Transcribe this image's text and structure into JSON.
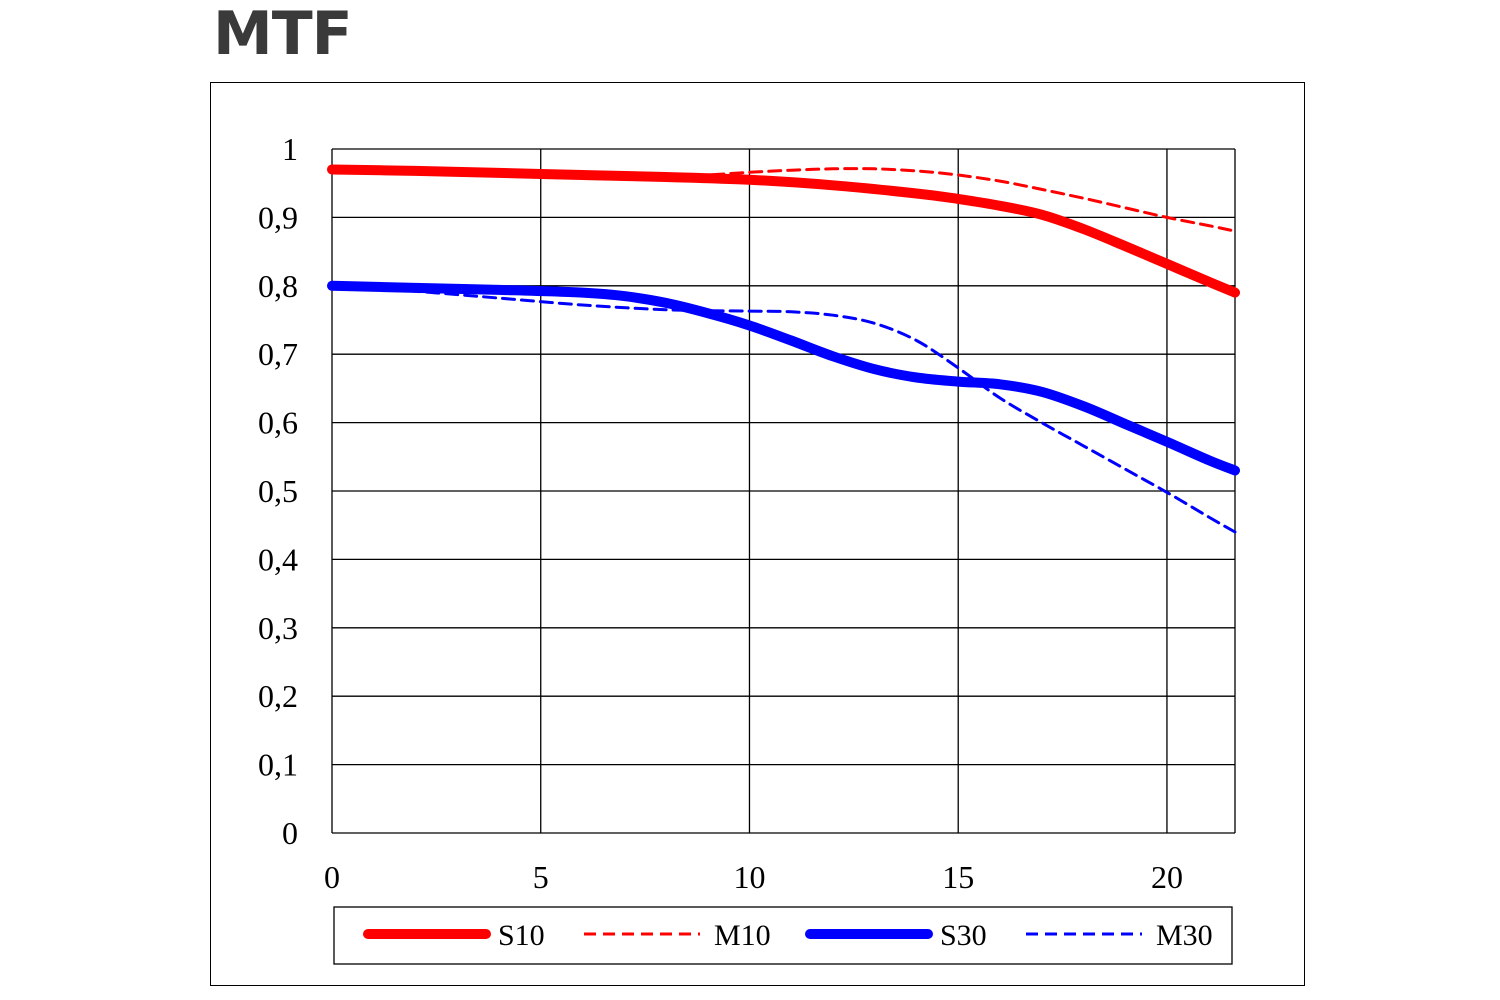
{
  "title": "MTF",
  "chart_data": {
    "type": "line",
    "title": "MTF",
    "xlabel": "",
    "ylabel": "",
    "xlim": [
      0,
      21.63
    ],
    "ylim": [
      0,
      1
    ],
    "x_ticks": [
      "0",
      "5",
      "10",
      "15",
      "20"
    ],
    "y_ticks": [
      "0",
      "0,1",
      "0,2",
      "0,3",
      "0,4",
      "0,5",
      "0,6",
      "0,7",
      "0,8",
      "0,9",
      "1"
    ],
    "grid": true,
    "legend_position": "bottom",
    "series": [
      {
        "name": "S10",
        "color": "#ff0000",
        "style": "solid",
        "x": [
          0,
          2,
          4,
          6,
          8,
          10,
          12,
          14,
          15,
          16,
          17,
          18,
          19,
          20,
          21,
          21.63
        ],
        "y": [
          0.97,
          0.968,
          0.965,
          0.962,
          0.959,
          0.955,
          0.947,
          0.935,
          0.927,
          0.917,
          0.904,
          0.883,
          0.858,
          0.832,
          0.806,
          0.79
        ]
      },
      {
        "name": "M10",
        "color": "#ff0000",
        "style": "dashed",
        "x": [
          0,
          2,
          4,
          6,
          8,
          9,
          10,
          11,
          12,
          13,
          14,
          15,
          16,
          17,
          18,
          19,
          20,
          21,
          21.63
        ],
        "y": [
          0.97,
          0.968,
          0.965,
          0.962,
          0.959,
          0.962,
          0.966,
          0.969,
          0.971,
          0.971,
          0.968,
          0.962,
          0.953,
          0.941,
          0.928,
          0.914,
          0.9,
          0.888,
          0.88
        ]
      },
      {
        "name": "S30",
        "color": "#0000ff",
        "style": "solid",
        "x": [
          0,
          2,
          4,
          6,
          7,
          8,
          9,
          10,
          11,
          12,
          13,
          14,
          15,
          16,
          17,
          18,
          19,
          20,
          21,
          21.63
        ],
        "y": [
          0.8,
          0.797,
          0.794,
          0.79,
          0.785,
          0.775,
          0.76,
          0.742,
          0.72,
          0.697,
          0.678,
          0.666,
          0.66,
          0.656,
          0.645,
          0.624,
          0.598,
          0.572,
          0.545,
          0.53
        ]
      },
      {
        "name": "M30",
        "color": "#0000ff",
        "style": "dashed",
        "x": [
          0,
          2,
          4,
          6,
          8,
          10,
          11,
          12,
          13,
          14,
          15,
          16,
          17,
          18,
          19,
          20,
          21,
          21.63
        ],
        "y": [
          0.8,
          0.792,
          0.782,
          0.772,
          0.765,
          0.763,
          0.762,
          0.757,
          0.745,
          0.72,
          0.68,
          0.636,
          0.6,
          0.566,
          0.532,
          0.498,
          0.462,
          0.44
        ]
      }
    ]
  }
}
